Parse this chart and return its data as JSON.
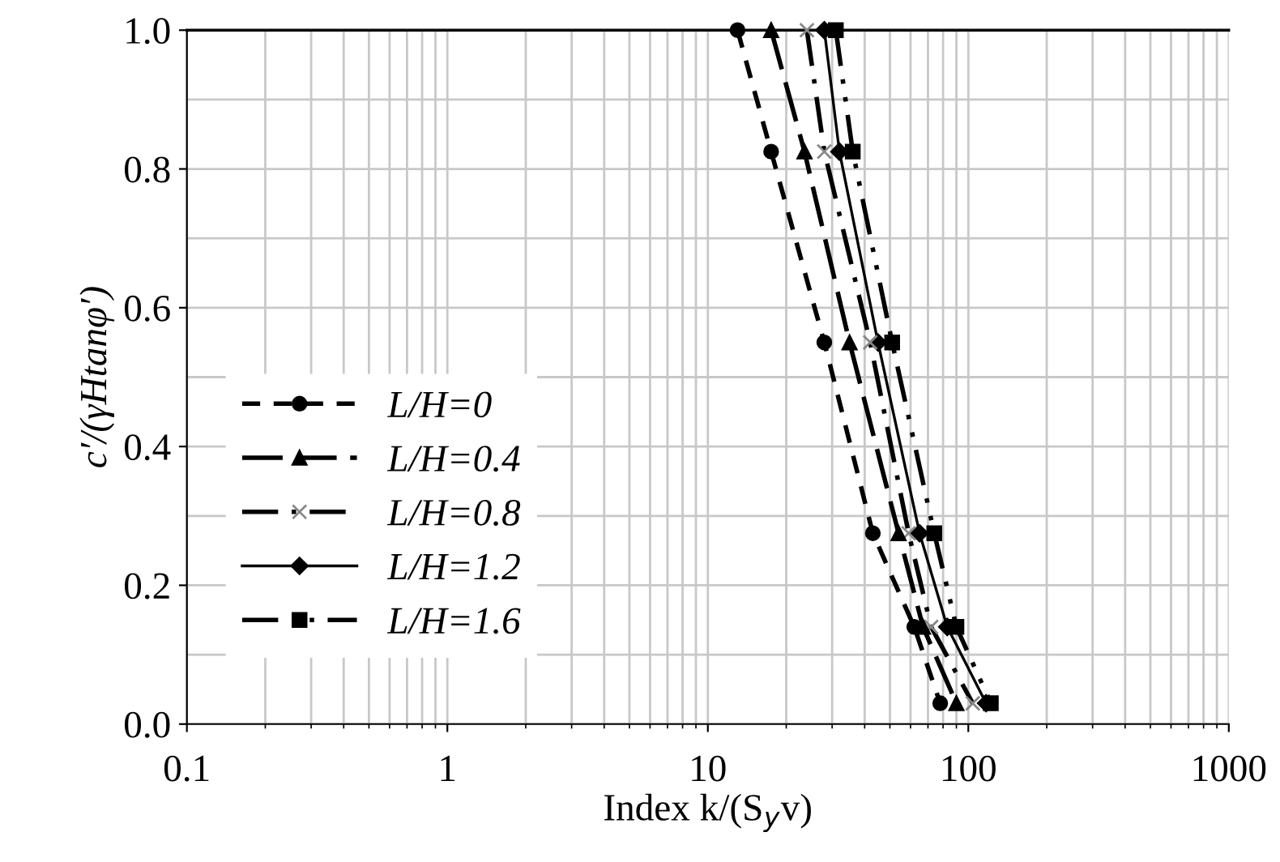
{
  "chart_data": {
    "type": "line",
    "xlabel": "Index k/(S$_{y}$v)",
    "ylabel": "c′/(γHtanφ′)",
    "log": "x",
    "grid": true,
    "legend": "left",
    "xlim": [
      0.1,
      1000
    ],
    "xticks": [
      0.1,
      1,
      10,
      100,
      1000
    ],
    "ylim": [
      0,
      1
    ],
    "yticks": [
      {
        "value": 0,
        "label": "0.0"
      },
      {
        "value": 0.2,
        "label": "0.2"
      },
      {
        "value": 0.4,
        "label": "0.4"
      },
      {
        "value": 0.6,
        "label": "0.6"
      },
      {
        "value": 0.8,
        "label": "0.8"
      },
      {
        "value": 1,
        "label": "1.0"
      }
    ],
    "series": [
      {
        "name": "L/H=0",
        "color": "#000000",
        "marker": "circle",
        "line_style": "dashed",
        "x": [
          13,
          17.5,
          28,
          43,
          62,
          78
        ],
        "values": [
          1,
          0.825,
          0.55,
          0.275,
          0.14,
          0.03
        ]
      },
      {
        "name": "L/H=0.4",
        "color": "#000000",
        "marker": "triangle",
        "line_style": "longdash",
        "x": [
          17.5,
          23.5,
          35,
          54,
          67,
          90
        ],
        "values": [
          1,
          0.825,
          0.55,
          0.275,
          0.14,
          0.03
        ]
      },
      {
        "name": "L/H=0.8",
        "color": "#000000",
        "marker": "cross",
        "line_style": "dashdot",
        "x": [
          24,
          28,
          42,
          59,
          72,
          104
        ],
        "values": [
          1,
          0.825,
          0.55,
          0.275,
          0.14,
          0.03
        ]
      },
      {
        "name": "L/H=1.2",
        "color": "#000000",
        "marker": "diamond",
        "line_style": "solid",
        "x": [
          28,
          32,
          45,
          65,
          83,
          117
        ],
        "values": [
          1,
          0.825,
          0.55,
          0.275,
          0.14,
          0.03
        ]
      },
      {
        "name": "L/H=1.6",
        "color": "#000000",
        "marker": "square",
        "line_style": "dashdotdot",
        "x": [
          31,
          36,
          51,
          74,
          90,
          122
        ],
        "values": [
          1,
          0.825,
          0.55,
          0.275,
          0.14,
          0.03
        ]
      }
    ]
  }
}
